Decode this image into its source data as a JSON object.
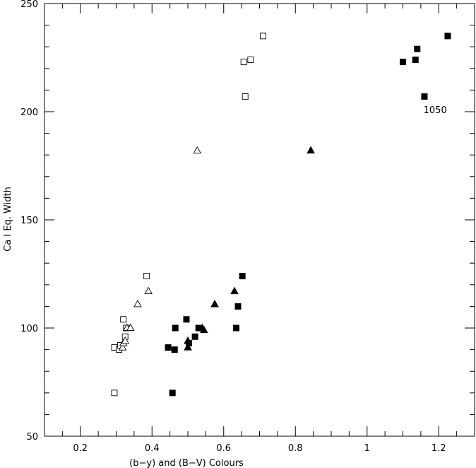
{
  "chart_data": {
    "type": "scatter",
    "xlabel": "(b−y) and (B−V) Colours",
    "ylabel": "Ca I Eq. Width",
    "xlim": [
      0.1,
      1.3
    ],
    "ylim": [
      50,
      250
    ],
    "xticks": [
      0.2,
      0.4,
      0.6,
      0.8,
      1.0,
      1.2
    ],
    "xtick_labels": [
      "0.2",
      "0.4",
      "0.6",
      "0.8",
      "1",
      "1.2"
    ],
    "yticks": [
      50,
      100,
      150,
      200,
      250
    ],
    "ytick_labels": [
      "50",
      "100",
      "150",
      "200",
      "250"
    ],
    "grid": false,
    "series": [
      {
        "marker": "open-square",
        "points": [
          {
            "x": 0.295,
            "y": 70
          },
          {
            "x": 0.295,
            "y": 91
          },
          {
            "x": 0.308,
            "y": 90
          },
          {
            "x": 0.312,
            "y": 92
          },
          {
            "x": 0.32,
            "y": 104
          },
          {
            "x": 0.325,
            "y": 96
          },
          {
            "x": 0.328,
            "y": 100
          },
          {
            "x": 0.385,
            "y": 124
          },
          {
            "x": 0.656,
            "y": 223
          },
          {
            "x": 0.66,
            "y": 207
          },
          {
            "x": 0.675,
            "y": 224
          },
          {
            "x": 0.71,
            "y": 235
          }
        ]
      },
      {
        "marker": "open-triangle",
        "points": [
          {
            "x": 0.318,
            "y": 91
          },
          {
            "x": 0.32,
            "y": 93
          },
          {
            "x": 0.325,
            "y": 94
          },
          {
            "x": 0.33,
            "y": 100
          },
          {
            "x": 0.34,
            "y": 100
          },
          {
            "x": 0.36,
            "y": 111
          },
          {
            "x": 0.39,
            "y": 117
          },
          {
            "x": 0.526,
            "y": 182
          }
        ]
      },
      {
        "marker": "filled-square",
        "points": [
          {
            "x": 0.457,
            "y": 70
          },
          {
            "x": 0.445,
            "y": 91
          },
          {
            "x": 0.463,
            "y": 90
          },
          {
            "x": 0.465,
            "y": 100
          },
          {
            "x": 0.496,
            "y": 104
          },
          {
            "x": 0.503,
            "y": 93
          },
          {
            "x": 0.52,
            "y": 96
          },
          {
            "x": 0.53,
            "y": 100
          },
          {
            "x": 0.635,
            "y": 100
          },
          {
            "x": 0.64,
            "y": 110
          },
          {
            "x": 0.652,
            "y": 124
          },
          {
            "x": 1.1,
            "y": 223
          },
          {
            "x": 1.135,
            "y": 224
          },
          {
            "x": 1.14,
            "y": 229
          },
          {
            "x": 1.16,
            "y": 207
          },
          {
            "x": 1.225,
            "y": 235
          }
        ]
      },
      {
        "marker": "filled-triangle",
        "points": [
          {
            "x": 0.5,
            "y": 91
          },
          {
            "x": 0.5,
            "y": 94
          },
          {
            "x": 0.54,
            "y": 100
          },
          {
            "x": 0.545,
            "y": 99
          },
          {
            "x": 0.575,
            "y": 111
          },
          {
            "x": 0.63,
            "y": 117
          },
          {
            "x": 0.843,
            "y": 182
          }
        ]
      }
    ],
    "annotations": [
      {
        "text": "1050",
        "x": 1.19,
        "y": 201
      }
    ]
  }
}
